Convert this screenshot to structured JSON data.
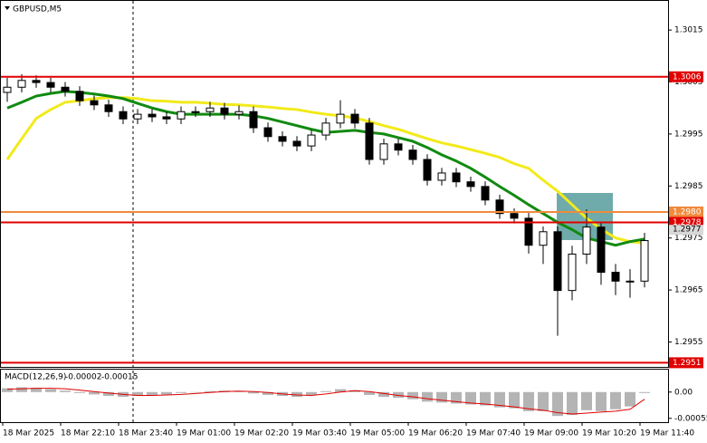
{
  "chart_data": [
    {
      "type": "candlestick",
      "title": "GBPUSD,M5",
      "categories": [
        "18 Mar 2025",
        null,
        null,
        null,
        "18 Mar 22:10",
        null,
        null,
        null,
        "18 Mar 23:40",
        null,
        null,
        null,
        "19 Mar 01:00",
        null,
        null,
        null,
        "19 Mar 02:20",
        null,
        null,
        null,
        "19 Mar 03:40",
        null,
        null,
        null,
        "19 Mar 05:00",
        null,
        null,
        null,
        "19 Mar 06:20",
        null,
        null,
        null,
        "19 Mar 07:40",
        null,
        null,
        null,
        "19 Mar 09:00",
        null,
        null,
        null,
        "19 Mar 10:20",
        null,
        null,
        null,
        "19 Mar 11:40"
      ],
      "open": [
        1.3003,
        1.3004,
        1.30053,
        1.30049,
        1.3004,
        1.30032,
        1.30014,
        1.30006,
        1.29993,
        1.29979,
        1.29988,
        1.29983,
        1.29979,
        1.29993,
        1.29993,
        1.3,
        1.29988,
        1.29993,
        1.29962,
        1.29945,
        1.29936,
        1.29927,
        1.29948,
        1.29971,
        1.29988,
        1.29971,
        1.29901,
        1.29931,
        1.29919,
        1.29901,
        1.29861,
        1.29875,
        1.29858,
        1.29849,
        1.29823,
        1.29797,
        1.29788,
        1.29736,
        1.29762,
        1.29649,
        1.29719,
        1.29771,
        1.29684,
        1.29667,
        1.29667
      ],
      "high": [
        1.30058,
        1.30065,
        1.30063,
        1.30058,
        1.3005,
        1.30042,
        1.30024,
        1.30016,
        1.30003,
        1.29998,
        1.29998,
        1.29993,
        1.30003,
        1.30003,
        1.30012,
        1.3001,
        1.30005,
        1.30003,
        1.29972,
        1.29955,
        1.29946,
        1.29958,
        1.29981,
        1.30015,
        1.29998,
        1.29981,
        1.29941,
        1.29941,
        1.29929,
        1.29911,
        1.29885,
        1.29885,
        1.29868,
        1.29859,
        1.29833,
        1.29807,
        1.29798,
        1.29772,
        1.29772,
        1.29735,
        1.29805,
        1.29781,
        1.297,
        1.2969,
        1.2976
      ],
      "low": [
        1.30012,
        1.3003,
        1.30039,
        1.3003,
        1.30022,
        1.30004,
        1.29996,
        1.29983,
        1.29969,
        1.29969,
        1.29973,
        1.29969,
        1.29969,
        1.29983,
        1.29983,
        1.29978,
        1.29978,
        1.29952,
        1.29935,
        1.29926,
        1.29917,
        1.29917,
        1.29938,
        1.29961,
        1.29961,
        1.29891,
        1.29891,
        1.29909,
        1.29891,
        1.29851,
        1.29851,
        1.29848,
        1.29839,
        1.29813,
        1.29787,
        1.29778,
        1.2972,
        1.297,
        1.29562,
        1.2963,
        1.297,
        1.2966,
        1.2964,
        1.29635,
        1.29655
      ],
      "close": [
        1.3004,
        1.30053,
        1.30049,
        1.3004,
        1.30032,
        1.30014,
        1.30006,
        1.29993,
        1.29979,
        1.29988,
        1.29983,
        1.29979,
        1.29993,
        1.29993,
        1.3,
        1.29988,
        1.29993,
        1.29962,
        1.29945,
        1.29936,
        1.29927,
        1.29948,
        1.29971,
        1.29988,
        1.29971,
        1.29901,
        1.29931,
        1.29919,
        1.29901,
        1.29861,
        1.29875,
        1.29858,
        1.29849,
        1.29823,
        1.29797,
        1.29788,
        1.29736,
        1.29762,
        1.29649,
        1.29719,
        1.29771,
        1.29684,
        1.29667,
        1.29667,
        1.29745
      ],
      "candle_color": "#000000",
      "series": [
        {
          "color": "#f2ea1a",
          "values": [
            1.29901,
            1.29941,
            1.2998,
            1.29997,
            1.30011,
            1.30014,
            1.30018,
            1.3002,
            1.3002,
            1.30018,
            1.30014,
            1.30013,
            1.30011,
            1.30011,
            1.30009,
            1.30007,
            1.30006,
            1.30004,
            1.30002,
            1.29999,
            1.29997,
            1.29992,
            1.29988,
            1.29985,
            1.29981,
            1.29974,
            1.29966,
            1.29959,
            1.2995,
            1.29941,
            1.29933,
            1.29927,
            1.2992,
            1.29913,
            1.29905,
            1.29893,
            1.29884,
            1.29861,
            1.2984,
            1.29814,
            1.29788,
            1.29767,
            1.2975,
            1.29743,
            1.2974
          ]
        },
        {
          "color": "#118a11",
          "values": [
            1.3,
            1.30011,
            1.30023,
            1.30028,
            1.30032,
            1.3003,
            1.30027,
            1.30023,
            1.30018,
            1.30009,
            1.3,
            1.29993,
            1.29988,
            1.29988,
            1.29988,
            1.29988,
            1.29988,
            1.29985,
            1.2998,
            1.29973,
            1.29966,
            1.29959,
            1.29953,
            1.29955,
            1.29957,
            1.29953,
            1.2995,
            1.29943,
            1.29936,
            1.29924,
            1.2991,
            1.29898,
            1.29884,
            1.29867,
            1.29849,
            1.29832,
            1.29814,
            1.29797,
            1.2978,
            1.29766,
            1.2975,
            1.29743,
            1.29736,
            1.29743,
            1.29748
          ]
        }
      ],
      "levels": [
        {
          "value": 1.3006,
          "color": "#e00000"
        },
        {
          "value": 1.298,
          "label": "1.2980",
          "color": "#f08a3c"
        },
        {
          "value": 1.2978,
          "color": "#e00000"
        },
        {
          "value": 1.2951,
          "color": "#e00000"
        }
      ],
      "current_price": 1.2977,
      "ylim": [
        1.29502,
        1.30206
      ],
      "yticks": [
        1.3015,
        1.3005,
        1.2995,
        1.2985,
        1.2975,
        1.2965,
        1.2955
      ]
    },
    {
      "type": "macd",
      "title": "MACD(12,26,9)",
      "color": "#b4b4b4",
      "values": [
        8e-05,
        0.0001,
        9e-05,
        6e-05,
        3e-05,
        -2e-05,
        -5e-05,
        -8e-05,
        -0.0001,
        -8e-05,
        -6e-05,
        -5e-05,
        -2e-05,
        0,
        2e-05,
        3e-05,
        2e-05,
        -3e-05,
        -6e-05,
        -8e-05,
        -0.0001,
        -6e-05,
        2e-05,
        6e-05,
        4e-05,
        -6e-05,
        -0.0001,
        -0.00012,
        -0.00015,
        -0.0002,
        -0.00022,
        -0.00024,
        -0.00026,
        -0.00028,
        -0.00032,
        -0.00034,
        -0.0004,
        -0.0004,
        -0.0005,
        -0.00048,
        -0.00038,
        -0.0004,
        -0.00036,
        -0.0003,
        -2e-05
      ],
      "series": [
        {
          "color": "#e00000",
          "values": [
            6e-05,
            7e-05,
            8e-05,
            8e-05,
            7e-05,
            4e-05,
            1e-05,
            -2e-05,
            -5e-05,
            -7e-05,
            -7e-05,
            -6e-05,
            -5e-05,
            -3e-05,
            -1e-05,
            1e-05,
            2e-05,
            1e-05,
            -1e-05,
            -4e-05,
            -6e-05,
            -7e-05,
            -4e-05,
            0,
            3e-05,
            1e-05,
            -3e-05,
            -7e-05,
            -0.0001,
            -0.00014,
            -0.00017,
            -0.0002,
            -0.00023,
            -0.00025,
            -0.00028,
            -0.00031,
            -0.00035,
            -0.00038,
            -0.00043,
            -0.00046,
            -0.00044,
            -0.00042,
            -0.0004,
            -0.00036,
            -0.00015
          ]
        }
      ],
      "ylim": [
        -0.00063,
        0.00047
      ],
      "yticks": [
        {
          "value": 0,
          "label": "0.00"
        },
        -0.00055
      ]
    }
  ]
}
